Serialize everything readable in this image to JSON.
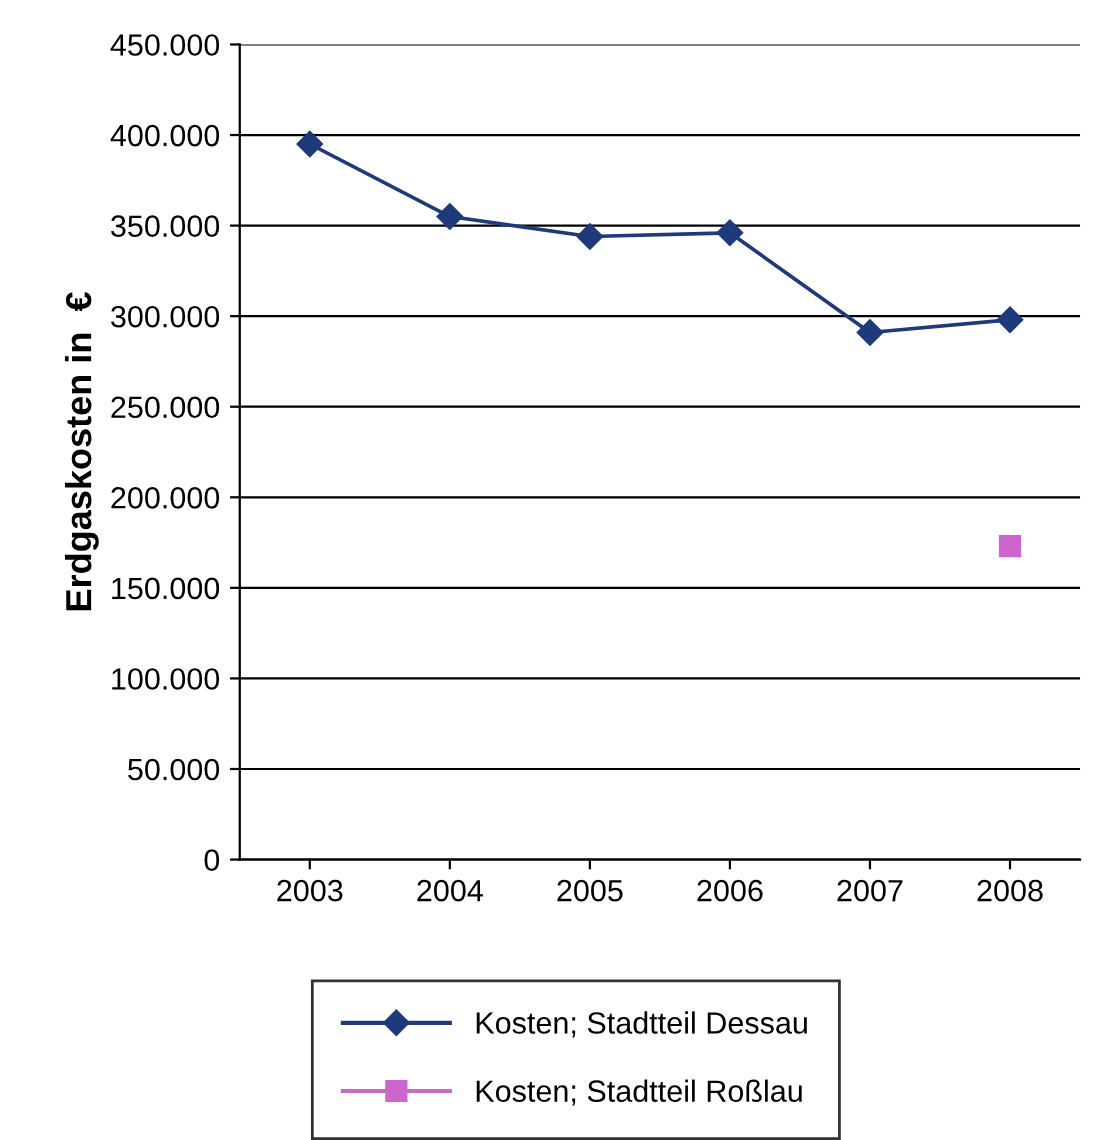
{
  "chart_data": {
    "type": "line",
    "ylabel": "Erdgaskosten in  €",
    "categories": [
      "2003",
      "2004",
      "2005",
      "2006",
      "2007",
      "2008"
    ],
    "series": [
      {
        "name": "Kosten; Stadtteil Dessau",
        "color": "#1f3a7a",
        "marker": "diamond",
        "values": [
          395000,
          355000,
          344000,
          346000,
          291000,
          298000
        ]
      },
      {
        "name": "Kosten; Stadtteil Roßlau",
        "color": "#cc66cc",
        "marker": "square",
        "values": [
          null,
          null,
          null,
          null,
          null,
          173000
        ]
      }
    ],
    "ylim": [
      0,
      450000
    ],
    "yticks": [
      {
        "value": 0,
        "label": "0"
      },
      {
        "value": 50000,
        "label": "50.000"
      },
      {
        "value": 100000,
        "label": "100.000"
      },
      {
        "value": 150000,
        "label": "150.000"
      },
      {
        "value": 200000,
        "label": "200.000"
      },
      {
        "value": 250000,
        "label": "250.000"
      },
      {
        "value": 300000,
        "label": "300.000"
      },
      {
        "value": 350000,
        "label": "350.000"
      },
      {
        "value": 400000,
        "label": "400.000"
      },
      {
        "value": 450000,
        "label": "450.000"
      }
    ],
    "grid": "y",
    "legend": "bottom",
    "line_style": "solid"
  }
}
